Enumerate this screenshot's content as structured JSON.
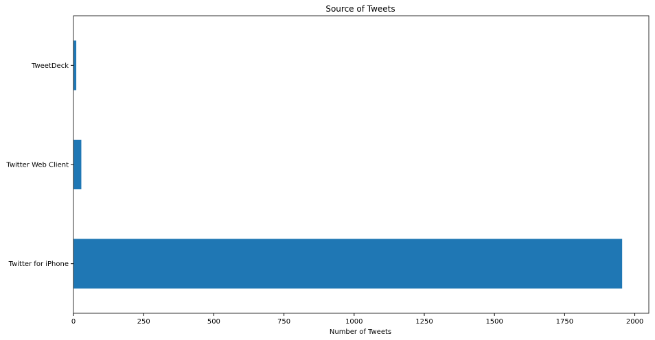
{
  "chart_data": {
    "type": "bar",
    "orientation": "horizontal",
    "title": "Source of Tweets",
    "xlabel": "Number of Tweets",
    "ylabel": "",
    "categories": [
      "Twitter for iPhone",
      "Twitter Web Client",
      "TweetDeck"
    ],
    "values": [
      1955,
      28,
      10
    ],
    "xlim": [
      0,
      2050
    ],
    "xticks": [
      0,
      250,
      500,
      750,
      1000,
      1250,
      1500,
      1750,
      2000
    ],
    "grid": false,
    "legend": "none",
    "bar_color": "#1f77b4"
  }
}
